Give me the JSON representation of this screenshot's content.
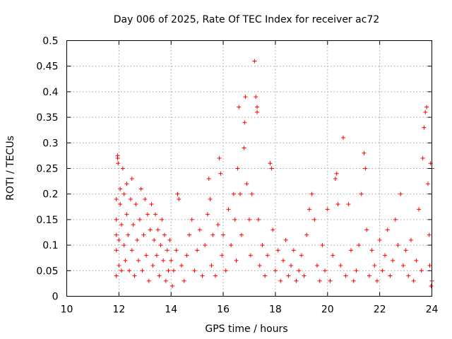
{
  "chart_data": {
    "type": "scatter",
    "title": "Day 006 of 2025, Rate Of TEC Index for receiver ac72",
    "xlabel": "GPS time / hours",
    "ylabel": "ROTI / TECUs",
    "xlim": [
      10,
      24
    ],
    "ylim": [
      0,
      0.5
    ],
    "xticks": [
      10,
      12,
      14,
      16,
      18,
      20,
      22,
      24
    ],
    "xtick_labels": [
      "10",
      "12",
      "14",
      "16",
      "18",
      "20",
      "22",
      "24"
    ],
    "yticks": [
      0,
      0.05,
      0.1,
      0.15,
      0.2,
      0.25,
      0.3,
      0.35,
      0.4,
      0.45,
      0.5
    ],
    "ytick_labels": [
      "0",
      "0.05",
      "0.1",
      "0.15",
      "0.2",
      "0.25",
      "0.3",
      "0.35",
      "0.4",
      "0.45",
      "0.5"
    ],
    "grid": true,
    "marker": "+",
    "color": "#ff0000",
    "series": [
      {
        "name": "ROTI",
        "points": [
          [
            11.9,
            0.04
          ],
          [
            11.9,
            0.09
          ],
          [
            11.9,
            0.12
          ],
          [
            11.9,
            0.15
          ],
          [
            11.9,
            0.19
          ],
          [
            11.95,
            0.27
          ],
          [
            11.95,
            0.275
          ],
          [
            11.97,
            0.26
          ],
          [
            12.0,
            0.06
          ],
          [
            12.0,
            0.11
          ],
          [
            12.05,
            0.18
          ],
          [
            12.05,
            0.21
          ],
          [
            12.1,
            0.05
          ],
          [
            12.1,
            0.14
          ],
          [
            12.15,
            0.25
          ],
          [
            12.2,
            0.1
          ],
          [
            12.2,
            0.2
          ],
          [
            12.25,
            0.07
          ],
          [
            12.3,
            0.16
          ],
          [
            12.3,
            0.22
          ],
          [
            12.35,
            0.12
          ],
          [
            12.4,
            0.05
          ],
          [
            12.45,
            0.19
          ],
          [
            12.5,
            0.23
          ],
          [
            12.5,
            0.09
          ],
          [
            12.55,
            0.14
          ],
          [
            12.6,
            0.04
          ],
          [
            12.65,
            0.18
          ],
          [
            12.7,
            0.11
          ],
          [
            12.75,
            0.07
          ],
          [
            12.8,
            0.15
          ],
          [
            12.85,
            0.21
          ],
          [
            12.9,
            0.05
          ],
          [
            12.95,
            0.12
          ],
          [
            13.0,
            0.19
          ],
          [
            13.05,
            0.08
          ],
          [
            13.1,
            0.16
          ],
          [
            13.15,
            0.03
          ],
          [
            13.2,
            0.13
          ],
          [
            13.25,
            0.18
          ],
          [
            13.3,
            0.06
          ],
          [
            13.35,
            0.11
          ],
          [
            13.4,
            0.16
          ],
          [
            13.45,
            0.08
          ],
          [
            13.5,
            0.13
          ],
          [
            13.55,
            0.04
          ],
          [
            13.6,
            0.1
          ],
          [
            13.65,
            0.15
          ],
          [
            13.7,
            0.07
          ],
          [
            13.75,
            0.12
          ],
          [
            13.8,
            0.03
          ],
          [
            13.85,
            0.09
          ],
          [
            13.9,
            0.05
          ],
          [
            13.95,
            0.11
          ],
          [
            14.0,
            0.07
          ],
          [
            14.05,
            0.02
          ],
          [
            14.1,
            0.05
          ],
          [
            14.2,
            0.09
          ],
          [
            14.25,
            0.2
          ],
          [
            14.3,
            0.19
          ],
          [
            14.4,
            0.06
          ],
          [
            14.5,
            0.03
          ],
          [
            14.6,
            0.08
          ],
          [
            14.7,
            0.12
          ],
          [
            14.8,
            0.15
          ],
          [
            14.9,
            0.05
          ],
          [
            15.0,
            0.09
          ],
          [
            15.1,
            0.13
          ],
          [
            15.2,
            0.04
          ],
          [
            15.3,
            0.1
          ],
          [
            15.4,
            0.16
          ],
          [
            15.45,
            0.23
          ],
          [
            15.5,
            0.19
          ],
          [
            15.55,
            0.06
          ],
          [
            15.6,
            0.12
          ],
          [
            15.7,
            0.04
          ],
          [
            15.8,
            0.14
          ],
          [
            15.85,
            0.27
          ],
          [
            15.9,
            0.24
          ],
          [
            15.95,
            0.08
          ],
          [
            16.0,
            0.12
          ],
          [
            16.1,
            0.05
          ],
          [
            16.2,
            0.17
          ],
          [
            16.3,
            0.1
          ],
          [
            16.4,
            0.2
          ],
          [
            16.45,
            0.15
          ],
          [
            16.5,
            0.07
          ],
          [
            16.55,
            0.25
          ],
          [
            16.6,
            0.37
          ],
          [
            16.65,
            0.2
          ],
          [
            16.7,
            0.12
          ],
          [
            16.8,
            0.29
          ],
          [
            16.82,
            0.34
          ],
          [
            16.85,
            0.39
          ],
          [
            16.9,
            0.22
          ],
          [
            17.0,
            0.15
          ],
          [
            17.05,
            0.08
          ],
          [
            17.1,
            0.2
          ],
          [
            17.2,
            0.46
          ],
          [
            17.25,
            0.39
          ],
          [
            17.3,
            0.36
          ],
          [
            17.3,
            0.37
          ],
          [
            17.35,
            0.15
          ],
          [
            17.4,
            0.06
          ],
          [
            17.5,
            0.1
          ],
          [
            17.6,
            0.04
          ],
          [
            17.7,
            0.08
          ],
          [
            17.8,
            0.26
          ],
          [
            17.85,
            0.25
          ],
          [
            17.9,
            0.13
          ],
          [
            18.0,
            0.05
          ],
          [
            18.1,
            0.09
          ],
          [
            18.2,
            0.03
          ],
          [
            18.3,
            0.07
          ],
          [
            18.4,
            0.11
          ],
          [
            18.5,
            0.04
          ],
          [
            18.6,
            0.06
          ],
          [
            18.7,
            0.09
          ],
          [
            18.8,
            0.03
          ],
          [
            18.9,
            0.05
          ],
          [
            19.0,
            0.08
          ],
          [
            19.1,
            0.04
          ],
          [
            19.2,
            0.12
          ],
          [
            19.3,
            0.17
          ],
          [
            19.4,
            0.2
          ],
          [
            19.5,
            0.15
          ],
          [
            19.6,
            0.06
          ],
          [
            19.7,
            0.03
          ],
          [
            19.8,
            0.1
          ],
          [
            19.9,
            0.05
          ],
          [
            20.0,
            0.17
          ],
          [
            20.1,
            0.03
          ],
          [
            20.2,
            0.08
          ],
          [
            20.3,
            0.23
          ],
          [
            20.35,
            0.24
          ],
          [
            20.4,
            0.18
          ],
          [
            20.5,
            0.06
          ],
          [
            20.6,
            0.31
          ],
          [
            20.7,
            0.04
          ],
          [
            20.8,
            0.18
          ],
          [
            20.9,
            0.09
          ],
          [
            21.0,
            0.03
          ],
          [
            21.1,
            0.05
          ],
          [
            21.2,
            0.1
          ],
          [
            21.3,
            0.2
          ],
          [
            21.4,
            0.28
          ],
          [
            21.45,
            0.25
          ],
          [
            21.5,
            0.13
          ],
          [
            21.6,
            0.04
          ],
          [
            21.7,
            0.09
          ],
          [
            21.8,
            0.06
          ],
          [
            21.9,
            0.03
          ],
          [
            22.0,
            0.11
          ],
          [
            22.1,
            0.05
          ],
          [
            22.2,
            0.08
          ],
          [
            22.3,
            0.13
          ],
          [
            22.4,
            0.04
          ],
          [
            22.5,
            0.07
          ],
          [
            22.6,
            0.15
          ],
          [
            22.7,
            0.1
          ],
          [
            22.8,
            0.2
          ],
          [
            22.9,
            0.06
          ],
          [
            23.0,
            0.09
          ],
          [
            23.1,
            0.04
          ],
          [
            23.2,
            0.11
          ],
          [
            23.3,
            0.03
          ],
          [
            23.4,
            0.07
          ],
          [
            23.5,
            0.17
          ],
          [
            23.6,
            0.05
          ],
          [
            23.65,
            0.27
          ],
          [
            23.7,
            0.33
          ],
          [
            23.75,
            0.36
          ],
          [
            23.8,
            0.37
          ],
          [
            23.85,
            0.22
          ],
          [
            23.9,
            0.12
          ],
          [
            23.95,
            0.26
          ],
          [
            24.0,
            0.25
          ],
          [
            24.0,
            0.03
          ],
          [
            23.97,
            0.02
          ],
          [
            23.92,
            0.06
          ]
        ]
      }
    ]
  }
}
